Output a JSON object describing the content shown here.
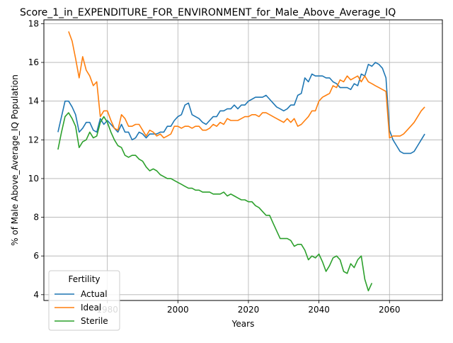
{
  "chart_data": {
    "type": "line",
    "title": "Score_1_in_EXPENDITURE_FOR_ENVIRONMENT_for_Male_Above_Average_IQ",
    "xlabel": "Years",
    "ylabel": "% of Male Above_Average_IQ Population",
    "xlim": [
      1962,
      2075
    ],
    "ylim": [
      3.7,
      18.2
    ],
    "xticks": [
      1980,
      2000,
      2020,
      2040,
      2060
    ],
    "yticks": [
      4,
      6,
      8,
      10,
      12,
      14,
      16,
      18
    ],
    "grid": true,
    "legend_title": "Fertility",
    "legend_position": "lower-left",
    "series": [
      {
        "name": "Actual",
        "color": "#1f77b4",
        "x": [
          1966,
          1967,
          1968,
          1969,
          1970,
          1971,
          1972,
          1973,
          1974,
          1975,
          1976,
          1977,
          1978,
          1979,
          1980,
          1981,
          1982,
          1983,
          1984,
          1985,
          1986,
          1987,
          1988,
          1989,
          1990,
          1991,
          1992,
          1993,
          1994,
          1995,
          1996,
          1997,
          1998,
          1999,
          2000,
          2001,
          2002,
          2003,
          2004,
          2005,
          2006,
          2007,
          2008,
          2009,
          2010,
          2011,
          2012,
          2013,
          2014,
          2015,
          2016,
          2017,
          2018,
          2019,
          2020,
          2021,
          2022,
          2023,
          2024,
          2025,
          2026,
          2027,
          2028,
          2029,
          2030,
          2031,
          2032,
          2033,
          2034,
          2035,
          2036,
          2037,
          2038,
          2039,
          2040,
          2041,
          2042,
          2043,
          2044,
          2045,
          2046,
          2047,
          2048,
          2049,
          2050,
          2051,
          2052,
          2053,
          2054,
          2055,
          2056,
          2057,
          2058,
          2059,
          2060,
          2061,
          2062,
          2063,
          2064,
          2065,
          2066,
          2067,
          2068,
          2069,
          2070
        ],
        "values": [
          12.4,
          13.2,
          14.0,
          14.0,
          13.7,
          13.3,
          12.4,
          12.6,
          12.9,
          12.9,
          12.5,
          12.4,
          13.1,
          12.8,
          13.0,
          12.8,
          12.6,
          12.4,
          12.8,
          12.4,
          12.4,
          12.0,
          12.1,
          12.4,
          12.3,
          12.1,
          12.3,
          12.3,
          12.3,
          12.4,
          12.4,
          12.7,
          12.7,
          13.0,
          13.2,
          13.3,
          13.8,
          13.9,
          13.3,
          13.2,
          13.1,
          12.9,
          12.8,
          13.0,
          13.2,
          13.2,
          13.5,
          13.5,
          13.6,
          13.6,
          13.8,
          13.6,
          13.8,
          13.8,
          14.0,
          14.1,
          14.2,
          14.2,
          14.2,
          14.3,
          14.1,
          13.9,
          13.7,
          13.6,
          13.5,
          13.6,
          13.8,
          13.8,
          14.3,
          14.4,
          15.2,
          15.0,
          15.4,
          15.3,
          15.3,
          15.3,
          15.2,
          15.2,
          15.0,
          14.9,
          14.7,
          14.7,
          14.7,
          14.6,
          14.9,
          14.8,
          15.4,
          15.3,
          15.9,
          15.8,
          16.0,
          15.9,
          15.7,
          15.2,
          12.5,
          12.0,
          11.7,
          11.4,
          11.3,
          11.3,
          11.3,
          11.4,
          11.7,
          12.0,
          12.3
        ]
      },
      {
        "name": "Ideal",
        "color": "#ff7f0e",
        "x": [
          1969,
          1970,
          1971,
          1972,
          1973,
          1974,
          1975,
          1976,
          1977,
          1978,
          1979,
          1980,
          1981,
          1982,
          1983,
          1984,
          1985,
          1986,
          1987,
          1988,
          1989,
          1990,
          1991,
          1992,
          1993,
          1994,
          1995,
          1996,
          1997,
          1998,
          1999,
          2000,
          2001,
          2002,
          2003,
          2004,
          2005,
          2006,
          2007,
          2008,
          2009,
          2010,
          2011,
          2012,
          2013,
          2014,
          2015,
          2016,
          2017,
          2018,
          2019,
          2020,
          2021,
          2022,
          2023,
          2024,
          2025,
          2026,
          2027,
          2028,
          2029,
          2030,
          2031,
          2032,
          2033,
          2034,
          2035,
          2036,
          2037,
          2038,
          2039,
          2040,
          2041,
          2042,
          2043,
          2044,
          2045,
          2046,
          2047,
          2048,
          2049,
          2050,
          2051,
          2052,
          2053,
          2054,
          2055,
          2056,
          2057,
          2058,
          2059,
          2060,
          2061,
          2062,
          2063,
          2064,
          2065,
          2066,
          2067,
          2068,
          2069,
          2070
        ],
        "values": [
          17.6,
          17.1,
          16.2,
          15.2,
          16.3,
          15.6,
          15.3,
          14.8,
          15.0,
          13.2,
          13.5,
          13.5,
          13.0,
          12.6,
          12.5,
          13.3,
          13.1,
          12.7,
          12.7,
          12.8,
          12.8,
          12.5,
          12.2,
          12.5,
          12.4,
          12.2,
          12.3,
          12.1,
          12.2,
          12.3,
          12.7,
          12.7,
          12.6,
          12.7,
          12.7,
          12.6,
          12.7,
          12.7,
          12.5,
          12.5,
          12.6,
          12.8,
          12.7,
          12.9,
          12.8,
          13.1,
          13.0,
          13.0,
          13.0,
          13.1,
          13.2,
          13.2,
          13.3,
          13.3,
          13.2,
          13.4,
          13.4,
          13.3,
          13.2,
          13.1,
          13.0,
          12.9,
          13.1,
          12.9,
          13.1,
          12.7,
          12.8,
          13.0,
          13.2,
          13.5,
          13.5,
          14.0,
          14.2,
          14.3,
          14.4,
          14.8,
          14.7,
          15.1,
          15.0,
          15.3,
          15.1,
          15.2,
          15.3,
          15.0,
          15.3,
          15.0,
          14.9,
          14.8,
          14.7,
          14.6,
          14.5,
          12.1,
          12.2,
          12.2,
          12.2,
          12.3,
          12.5,
          12.7,
          12.9,
          13.2,
          13.5,
          13.7
        ]
      },
      {
        "name": "Sterile",
        "color": "#2ca02c",
        "x": [
          1966,
          1967,
          1968,
          1969,
          1970,
          1971,
          1972,
          1973,
          1974,
          1975,
          1976,
          1977,
          1978,
          1979,
          1980,
          1981,
          1982,
          1983,
          1984,
          1985,
          1986,
          1987,
          1988,
          1989,
          1990,
          1991,
          1992,
          1993,
          1994,
          1995,
          1996,
          1997,
          1998,
          1999,
          2000,
          2001,
          2002,
          2003,
          2004,
          2005,
          2006,
          2007,
          2008,
          2009,
          2010,
          2011,
          2012,
          2013,
          2014,
          2015,
          2016,
          2017,
          2018,
          2019,
          2020,
          2021,
          2022,
          2023,
          2024,
          2025,
          2026,
          2027,
          2028,
          2029,
          2030,
          2031,
          2032,
          2033,
          2034,
          2035,
          2036,
          2037,
          2038,
          2039,
          2040,
          2041,
          2042,
          2043,
          2044,
          2045,
          2046,
          2047,
          2048,
          2049,
          2050,
          2051,
          2052,
          2053,
          2054,
          2055
        ],
        "values": [
          11.5,
          12.4,
          13.2,
          13.4,
          13.1,
          12.7,
          11.6,
          11.9,
          12.0,
          12.4,
          12.1,
          12.2,
          12.9,
          13.2,
          12.9,
          12.4,
          12.0,
          11.7,
          11.6,
          11.2,
          11.1,
          11.2,
          11.2,
          11.0,
          10.9,
          10.6,
          10.4,
          10.5,
          10.4,
          10.2,
          10.1,
          10.0,
          10.0,
          9.9,
          9.8,
          9.7,
          9.6,
          9.5,
          9.5,
          9.4,
          9.4,
          9.3,
          9.3,
          9.3,
          9.2,
          9.2,
          9.2,
          9.3,
          9.1,
          9.2,
          9.1,
          9.0,
          8.9,
          8.9,
          8.8,
          8.8,
          8.6,
          8.5,
          8.3,
          8.1,
          8.1,
          7.7,
          7.3,
          6.9,
          6.9,
          6.9,
          6.8,
          6.5,
          6.6,
          6.6,
          6.3,
          5.8,
          6.0,
          5.9,
          6.1,
          5.7,
          5.2,
          5.5,
          5.9,
          6.0,
          5.8,
          5.2,
          5.1,
          5.6,
          5.4,
          5.8,
          6.0,
          4.8,
          4.2,
          4.6
        ]
      }
    ]
  }
}
